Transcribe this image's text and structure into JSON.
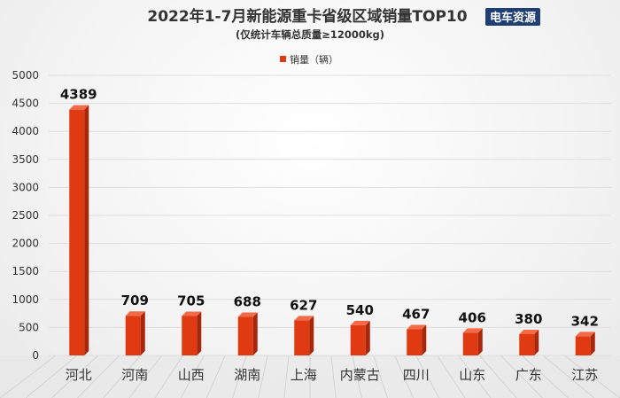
{
  "chart_data": {
    "type": "bar",
    "title": "2022年1-7月新能源重卡省级区域销量TOP10",
    "subtitle": "(仅统计车辆总质量≥12000kg)",
    "legend": {
      "label": "销量（辆）",
      "position": "top-center",
      "color": "#e03a13"
    },
    "categories": [
      "河北",
      "河南",
      "山西",
      "湖南",
      "上海",
      "内蒙古",
      "四川",
      "山东",
      "广东",
      "江苏"
    ],
    "series": [
      {
        "name": "销量（辆）",
        "values": [
          4389,
          709,
          705,
          688,
          627,
          540,
          467,
          406,
          380,
          342
        ]
      }
    ],
    "ylim": [
      0,
      5000
    ],
    "yticks": [
      "0",
      "500",
      "1000",
      "1500",
      "2000",
      "2500",
      "3000",
      "3500",
      "4000",
      "4500",
      "5000"
    ],
    "grid": true,
    "bar_color_front": "#e03a13",
    "bar_color_side": "#a8260a",
    "bar_color_top": "#f26a48"
  },
  "logo": {
    "text": "电车资源",
    "bg": "#1f3f73"
  }
}
